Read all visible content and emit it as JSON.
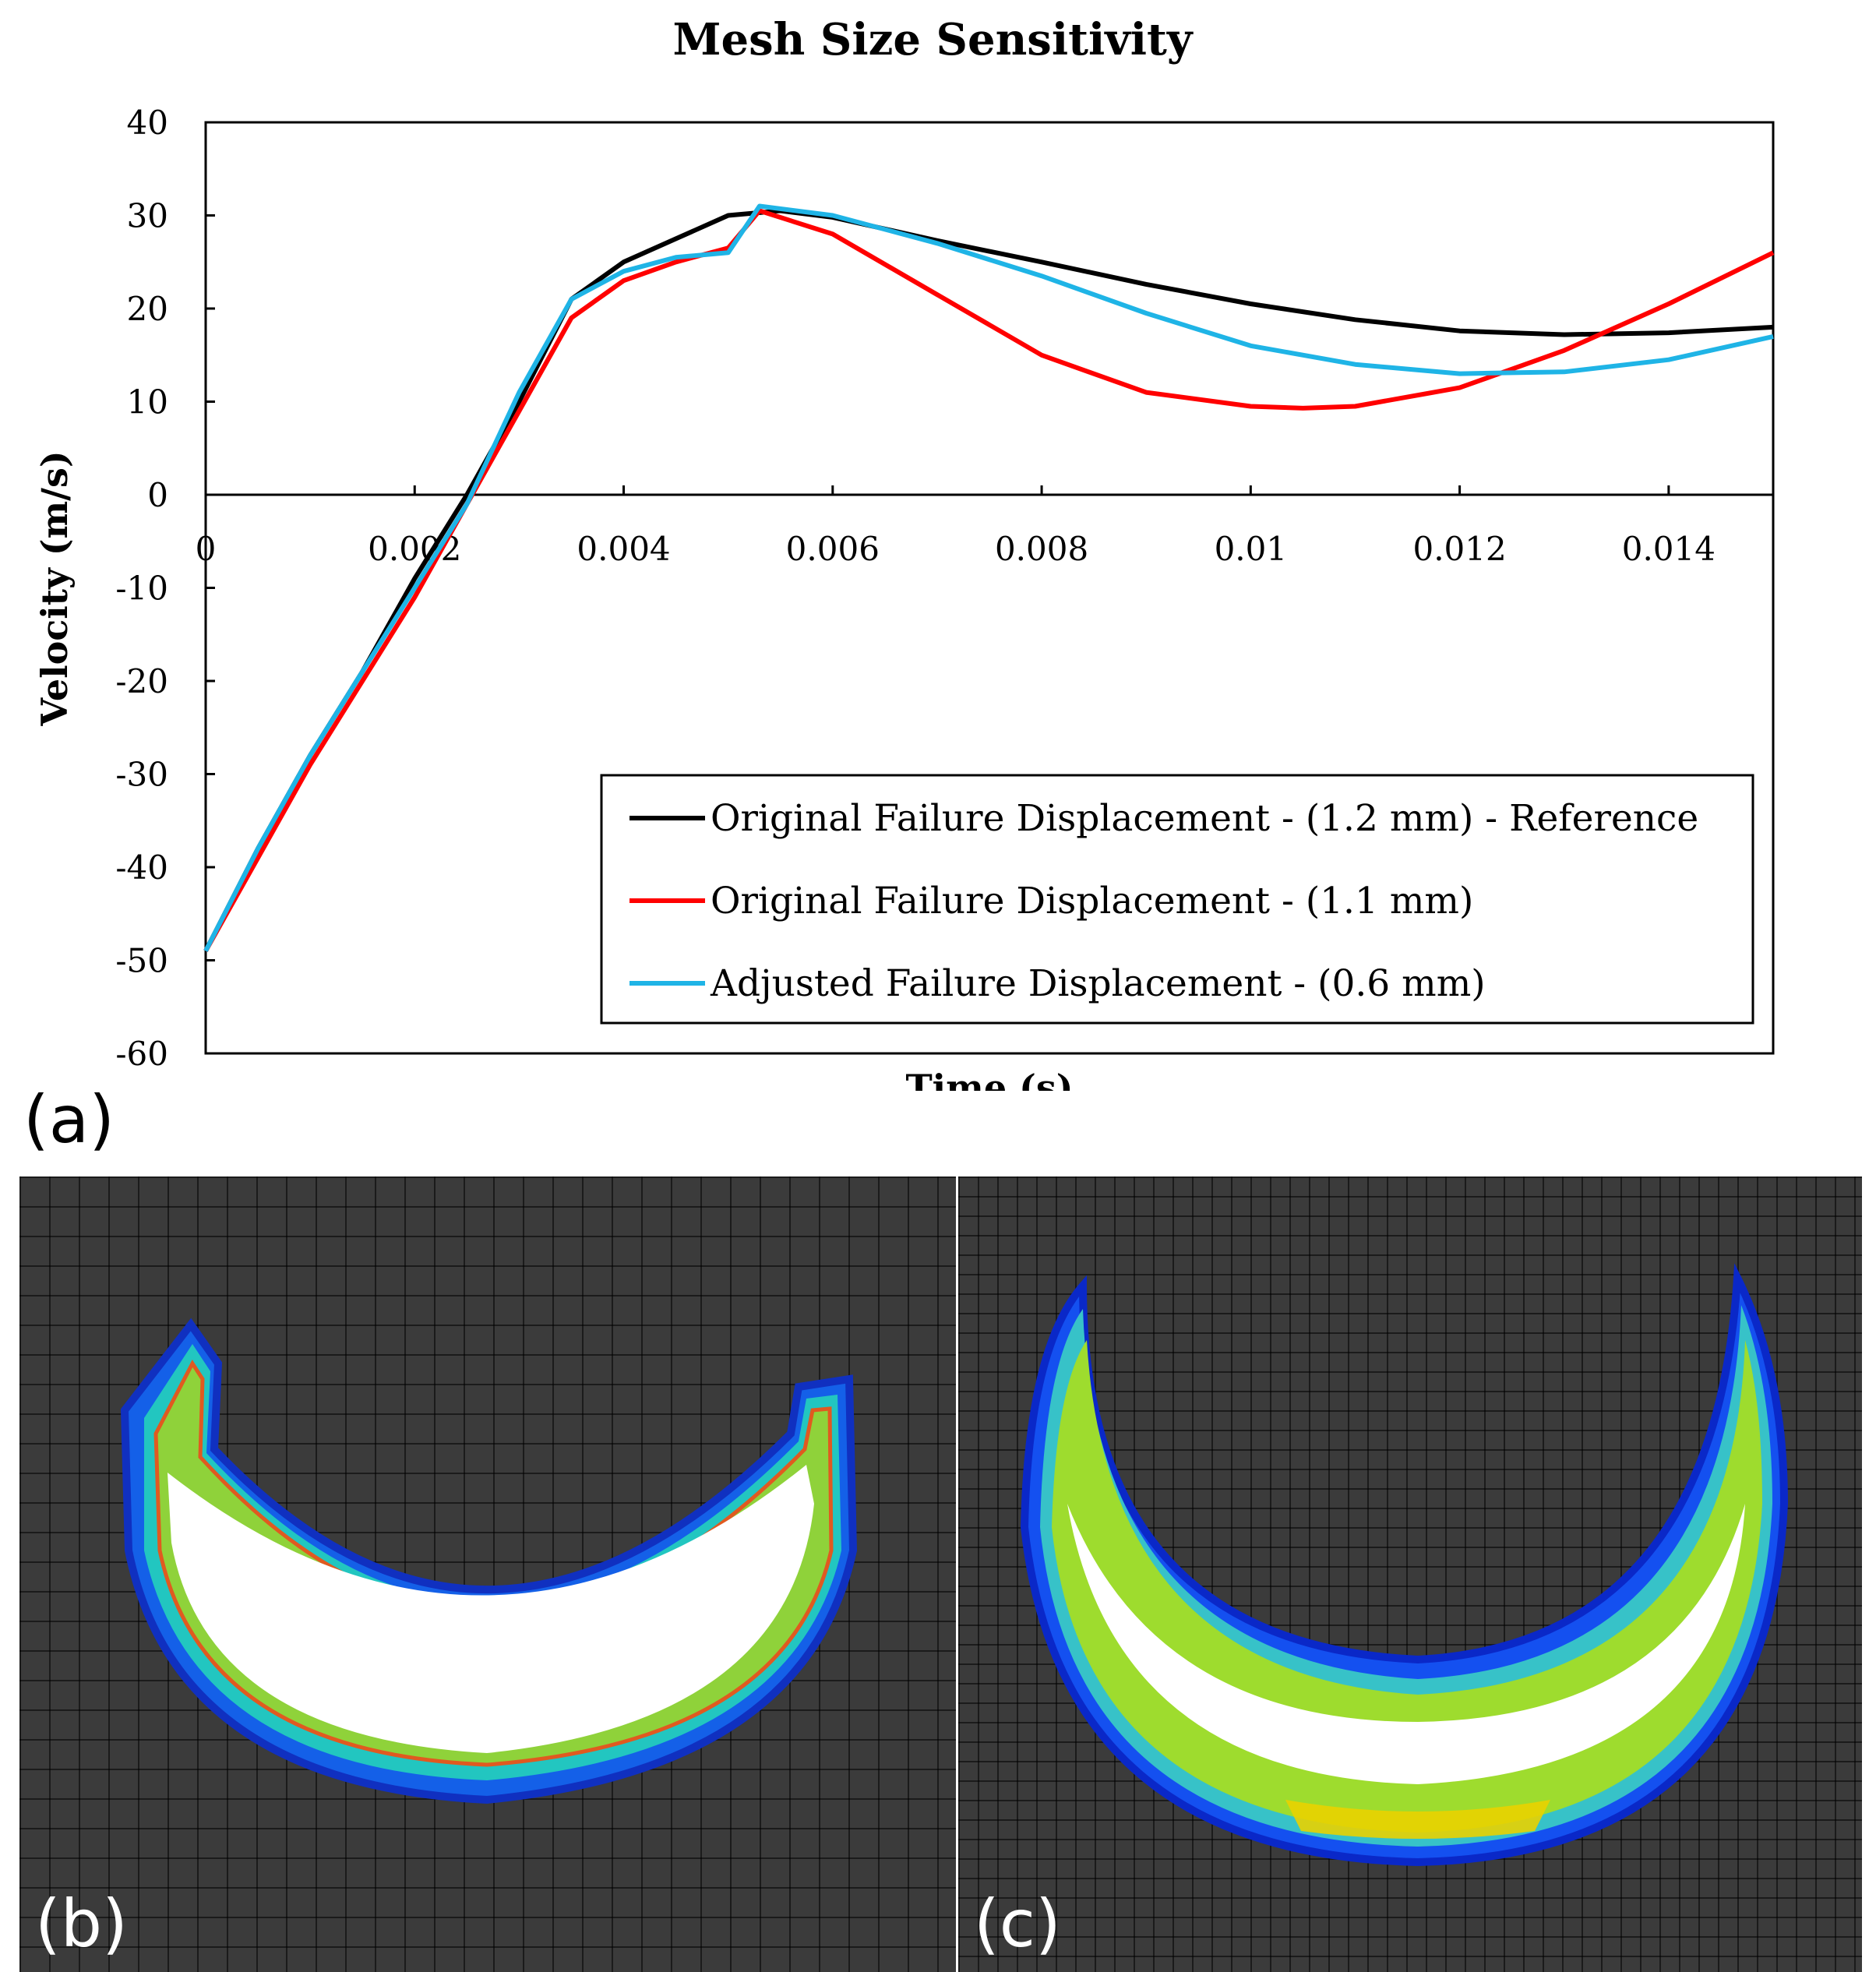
{
  "chart_data": {
    "type": "line",
    "title": "Mesh Size Sensitivity",
    "xlabel": "Time (s)",
    "ylabel": "Velocity (m/s)",
    "xlim": [
      0,
      0.015
    ],
    "ylim": [
      -60,
      40
    ],
    "x_ticks": [
      0,
      0.002,
      0.004,
      0.006,
      0.008,
      0.01,
      0.012,
      0.014
    ],
    "x_tick_labels": [
      "0",
      "0.002",
      "0.004",
      "0.006",
      "0.008",
      "0.01",
      "0.012",
      "0.014"
    ],
    "y_ticks": [
      -60,
      -50,
      -40,
      -30,
      -20,
      -10,
      0,
      10,
      20,
      30,
      40
    ],
    "y_tick_labels": [
      "-60",
      "-50",
      "-40",
      "-30",
      "-20",
      "-10",
      "0",
      "10",
      "20",
      "30",
      "40"
    ],
    "grid": false,
    "legend_position": "bottom-right",
    "series": [
      {
        "name": "Original Failure Displacement - (1.2 mm) - Reference",
        "color": "#000000",
        "x": [
          0,
          0.0005,
          0.001,
          0.0015,
          0.002,
          0.0025,
          0.003,
          0.0035,
          0.004,
          0.0045,
          0.005,
          0.0055,
          0.006,
          0.007,
          0.008,
          0.009,
          0.01,
          0.011,
          0.012,
          0.013,
          0.014,
          0.015
        ],
        "y": [
          -49,
          -38,
          -28,
          -19,
          -9,
          0,
          10,
          21,
          25,
          27.5,
          30,
          30.5,
          29.8,
          27.3,
          25,
          22.6,
          20.5,
          18.8,
          17.6,
          17.2,
          17.4,
          18
        ]
      },
      {
        "name": "Original Failure Displacement - (1.1 mm)",
        "color": "#ff0000",
        "x": [
          0,
          0.0005,
          0.001,
          0.0015,
          0.002,
          0.0025,
          0.003,
          0.0035,
          0.004,
          0.0045,
          0.005,
          0.0053,
          0.006,
          0.007,
          0.008,
          0.009,
          0.01,
          0.0105,
          0.011,
          0.012,
          0.013,
          0.014,
          0.015
        ],
        "y": [
          -49,
          -39,
          -29,
          -20,
          -11,
          -1,
          9,
          19,
          23,
          25,
          26.5,
          30.5,
          28,
          21.5,
          15,
          11,
          9.5,
          9.3,
          9.5,
          11.5,
          15.5,
          20.5,
          26
        ]
      },
      {
        "name": "Adjusted Failure Displacement - (0.6 mm)",
        "color": "#1fb4e6",
        "x": [
          0,
          0.0005,
          0.001,
          0.0015,
          0.002,
          0.0025,
          0.003,
          0.0035,
          0.004,
          0.0045,
          0.005,
          0.0053,
          0.006,
          0.007,
          0.008,
          0.009,
          0.01,
          0.011,
          0.012,
          0.013,
          0.014,
          0.015
        ],
        "y": [
          -49,
          -38,
          -28,
          -19,
          -10,
          -1,
          11,
          21,
          24,
          25.5,
          26,
          31,
          30,
          27,
          23.5,
          19.5,
          16,
          14,
          13,
          13.2,
          14.5,
          17
        ]
      }
    ]
  },
  "panels": {
    "a_label": "(a)",
    "b_label": "(b)",
    "c_label": "(c)"
  }
}
